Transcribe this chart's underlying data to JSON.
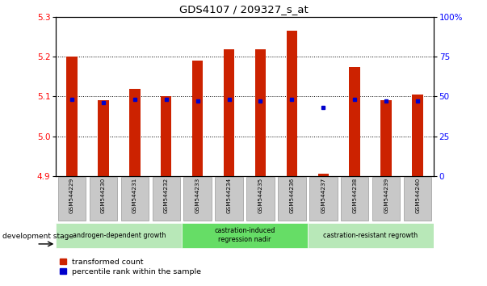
{
  "title": "GDS4107 / 209327_s_at",
  "samples": [
    "GSM544229",
    "GSM544230",
    "GSM544231",
    "GSM544232",
    "GSM544233",
    "GSM544234",
    "GSM544235",
    "GSM544236",
    "GSM544237",
    "GSM544238",
    "GSM544239",
    "GSM544240"
  ],
  "red_values": [
    5.2,
    5.09,
    5.12,
    5.1,
    5.19,
    5.22,
    5.22,
    5.265,
    4.905,
    5.175,
    5.09,
    5.105
  ],
  "blue_values": [
    48,
    46,
    48,
    48,
    47,
    48,
    47,
    48,
    43,
    48,
    47,
    47
  ],
  "y_min": 4.9,
  "y_max": 5.3,
  "y_ticks": [
    4.9,
    5.0,
    5.1,
    5.2,
    5.3
  ],
  "y2_ticks": [
    0,
    25,
    50,
    75,
    100
  ],
  "y2_tick_labels": [
    "0",
    "25",
    "50",
    "75",
    "100%"
  ],
  "bar_color": "#cc2200",
  "dot_color": "#0000cc",
  "groups": [
    {
      "label": "androgen-dependent growth",
      "start": 0,
      "end": 3,
      "color": "#b8e8b8"
    },
    {
      "label": "castration-induced\nregression nadir",
      "start": 4,
      "end": 7,
      "color": "#66dd66"
    },
    {
      "label": "castration-resistant regrowth",
      "start": 8,
      "end": 11,
      "color": "#b8e8b8"
    }
  ],
  "dev_stage_label": "development stage",
  "legend_red": "transformed count",
  "legend_blue": "percentile rank within the sample",
  "sample_box_color": "#c8c8c8",
  "sample_box_edge": "#aaaaaa"
}
